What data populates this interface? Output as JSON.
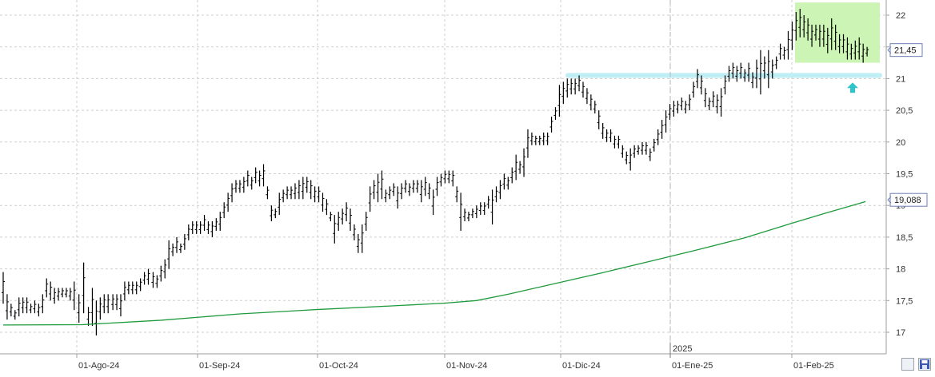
{
  "chart_data": {
    "type": "bar",
    "subtype": "ohlc",
    "x_ticks": [
      "01-Ago-24",
      "01-Sep-24",
      "01-Oct-24",
      "01-Nov-24",
      "01-Dic-24",
      "01-Ene-25",
      "01-Feb-25"
    ],
    "year_marker": "2025",
    "y_ticks": [
      "17",
      "17,5",
      "18",
      "18,5",
      "19",
      "19,5",
      "20",
      "20,5",
      "21",
      "21,5",
      "22"
    ],
    "ylim": [
      16.9,
      22.2
    ],
    "grid": true,
    "last_price_label": "21,45",
    "last_price": 21.45,
    "ma_label": "19,088",
    "ma_value": 19.088,
    "colors": {
      "bars": "#000000",
      "moving_average": "#1e9a3c",
      "support_line": "#bfeef5",
      "highlight_zone": "#ccf5b5",
      "arrow": "#2ec4c8",
      "grid": "#cfcfcf"
    },
    "support_level": 21.05,
    "arrow_direction": "up",
    "arrow_icon": "arrow-up-icon",
    "highlight_range": [
      21.25,
      22.2
    ],
    "bars": [
      [
        0,
        17.95,
        17.45
      ],
      [
        5,
        17.6,
        17.2
      ],
      [
        10,
        17.45,
        17.25
      ],
      [
        15,
        17.35,
        17.2
      ],
      [
        20,
        17.55,
        17.25
      ],
      [
        25,
        17.55,
        17.3
      ],
      [
        30,
        17.55,
        17.3
      ],
      [
        35,
        17.45,
        17.3
      ],
      [
        40,
        17.5,
        17.3
      ],
      [
        45,
        17.45,
        17.25
      ],
      [
        50,
        17.6,
        17.3
      ],
      [
        55,
        17.85,
        17.55
      ],
      [
        60,
        17.8,
        17.5
      ],
      [
        65,
        17.7,
        17.45
      ],
      [
        70,
        17.7,
        17.5
      ],
      [
        75,
        17.7,
        17.55
      ],
      [
        80,
        17.7,
        17.55
      ],
      [
        85,
        17.7,
        17.5
      ],
      [
        90,
        17.8,
        17.35
      ],
      [
        96,
        17.6,
        17.15
      ],
      [
        102,
        18.1,
        17.3
      ],
      [
        108,
        17.4,
        17.1
      ],
      [
        113,
        17.7,
        17.1
      ],
      [
        118,
        17.5,
        16.95
      ],
      [
        123,
        17.55,
        17.2
      ],
      [
        128,
        17.6,
        17.3
      ],
      [
        133,
        17.6,
        17.3
      ],
      [
        139,
        17.6,
        17.35
      ],
      [
        144,
        17.6,
        17.35
      ],
      [
        149,
        17.6,
        17.25
      ],
      [
        154,
        17.8,
        17.5
      ],
      [
        159,
        17.8,
        17.6
      ],
      [
        164,
        17.8,
        17.6
      ],
      [
        169,
        17.8,
        17.6
      ],
      [
        174,
        17.85,
        17.65
      ],
      [
        179,
        17.95,
        17.75
      ],
      [
        184,
        18,
        17.75
      ],
      [
        190,
        17.95,
        17.7
      ],
      [
        195,
        17.9,
        17.7
      ],
      [
        200,
        18.05,
        17.8
      ],
      [
        205,
        18.15,
        17.85
      ],
      [
        210,
        18.45,
        18
      ],
      [
        215,
        18.4,
        18.2
      ],
      [
        220,
        18.5,
        18.25
      ],
      [
        225,
        18.4,
        18.25
      ],
      [
        230,
        18.55,
        18.3
      ],
      [
        235,
        18.7,
        18.45
      ],
      [
        240,
        18.75,
        18.55
      ],
      [
        245,
        18.75,
        18.55
      ],
      [
        250,
        18.75,
        18.55
      ],
      [
        255,
        18.85,
        18.6
      ],
      [
        260,
        18.75,
        18.55
      ],
      [
        265,
        18.75,
        18.5
      ],
      [
        270,
        18.8,
        18.6
      ],
      [
        275,
        18.9,
        18.6
      ],
      [
        280,
        19.05,
        18.8
      ],
      [
        285,
        19.2,
        18.9
      ],
      [
        290,
        19.35,
        19.05
      ],
      [
        295,
        19.4,
        19.2
      ],
      [
        300,
        19.4,
        19.2
      ],
      [
        305,
        19.45,
        19.2
      ],
      [
        310,
        19.55,
        19.3
      ],
      [
        315,
        19.45,
        19.25
      ],
      [
        320,
        19.6,
        19.35
      ],
      [
        325,
        19.55,
        19.3
      ],
      [
        330,
        19.65,
        19.3
      ],
      [
        335,
        19.3,
        19.1
      ],
      [
        340,
        19,
        18.75
      ],
      [
        345,
        18.95,
        18.8
      ],
      [
        350,
        19.2,
        18.85
      ],
      [
        355,
        19.25,
        19.05
      ],
      [
        360,
        19.3,
        19.1
      ],
      [
        365,
        19.3,
        19.1
      ],
      [
        370,
        19.35,
        19.1
      ],
      [
        375,
        19.4,
        19.1
      ],
      [
        380,
        19.45,
        19.1
      ],
      [
        385,
        19.45,
        19.2
      ],
      [
        390,
        19.4,
        19.1
      ],
      [
        395,
        19.3,
        19.05
      ],
      [
        400,
        19.3,
        19.05
      ],
      [
        405,
        19.2,
        18.9
      ],
      [
        410,
        19.1,
        18.85
      ],
      [
        415,
        18.9,
        18.75
      ],
      [
        420,
        18.85,
        18.4
      ],
      [
        425,
        18.9,
        18.6
      ],
      [
        430,
        18.95,
        18.7
      ],
      [
        435,
        19.05,
        18.75
      ],
      [
        440,
        18.95,
        18.6
      ],
      [
        445,
        18.7,
        18.45
      ],
      [
        450,
        18.55,
        18.25
      ],
      [
        455,
        18.7,
        18.25
      ],
      [
        460,
        18.9,
        18.6
      ],
      [
        465,
        19.3,
        18.9
      ],
      [
        470,
        19.4,
        19.1
      ],
      [
        475,
        19.5,
        19.05
      ],
      [
        480,
        19.55,
        19.1
      ],
      [
        485,
        19.25,
        19.05
      ],
      [
        490,
        19.3,
        19.1
      ],
      [
        495,
        19.35,
        19.15
      ],
      [
        500,
        19.3,
        18.95
      ],
      [
        505,
        19.35,
        19.1
      ],
      [
        510,
        19.4,
        19.2
      ],
      [
        515,
        19.35,
        19.15
      ],
      [
        520,
        19.4,
        19.2
      ],
      [
        525,
        19.4,
        19.2
      ],
      [
        530,
        19.4,
        19.05
      ],
      [
        535,
        19.45,
        19.15
      ],
      [
        540,
        19.35,
        19.1
      ],
      [
        545,
        19.25,
        18.85
      ],
      [
        550,
        19.45,
        19.15
      ],
      [
        555,
        19.5,
        19.3
      ],
      [
        560,
        19.55,
        19.35
      ],
      [
        565,
        19.55,
        19.35
      ],
      [
        570,
        19.55,
        19.3
      ],
      [
        575,
        19.3,
        19.05
      ],
      [
        580,
        19.2,
        18.6
      ],
      [
        585,
        18.95,
        18.75
      ],
      [
        590,
        18.9,
        18.75
      ],
      [
        595,
        18.95,
        18.8
      ],
      [
        600,
        19,
        18.8
      ],
      [
        605,
        19.05,
        18.85
      ],
      [
        610,
        19.05,
        18.85
      ],
      [
        615,
        19.15,
        18.95
      ],
      [
        620,
        19.25,
        18.7
      ],
      [
        625,
        19.3,
        19.05
      ],
      [
        630,
        19.4,
        19.1
      ],
      [
        635,
        19.5,
        19.25
      ],
      [
        640,
        19.45,
        19.25
      ],
      [
        645,
        19.6,
        19.35
      ],
      [
        650,
        19.8,
        19.4
      ],
      [
        655,
        19.7,
        19.5
      ],
      [
        660,
        19.9,
        19.45
      ],
      [
        665,
        20.2,
        19.75
      ],
      [
        670,
        20.15,
        19.95
      ],
      [
        675,
        20.1,
        19.95
      ],
      [
        680,
        20.1,
        19.95
      ],
      [
        685,
        20.15,
        19.95
      ],
      [
        690,
        20.15,
        19.95
      ],
      [
        695,
        20.4,
        20.15
      ],
      [
        700,
        20.55,
        20.35
      ],
      [
        705,
        20.9,
        20.4
      ],
      [
        710,
        20.95,
        20.6
      ],
      [
        715,
        21,
        20.7
      ],
      [
        720,
        21,
        20.75
      ],
      [
        725,
        21,
        20.75
      ],
      [
        730,
        21.05,
        20.8
      ],
      [
        735,
        20.95,
        20.7
      ],
      [
        740,
        20.85,
        20.6
      ],
      [
        745,
        20.75,
        20.5
      ],
      [
        750,
        20.65,
        20.45
      ],
      [
        755,
        20.5,
        20.2
      ],
      [
        760,
        20.3,
        20.05
      ],
      [
        765,
        20.2,
        20
      ],
      [
        770,
        20.2,
        20
      ],
      [
        775,
        20.1,
        19.9
      ],
      [
        780,
        20.1,
        19.9
      ],
      [
        785,
        19.95,
        19.75
      ],
      [
        790,
        19.85,
        19.65
      ],
      [
        795,
        19.9,
        19.55
      ],
      [
        800,
        19.95,
        19.75
      ],
      [
        805,
        19.95,
        19.8
      ],
      [
        810,
        20,
        19.8
      ],
      [
        815,
        20,
        19.8
      ],
      [
        820,
        19.9,
        19.7
      ],
      [
        825,
        20.05,
        19.85
      ],
      [
        830,
        20.2,
        19.95
      ],
      [
        835,
        20.35,
        20.05
      ],
      [
        840,
        20.5,
        20.15
      ],
      [
        845,
        20.6,
        20.35
      ],
      [
        850,
        20.65,
        20.4
      ],
      [
        855,
        20.65,
        20.45
      ],
      [
        860,
        20.7,
        20.5
      ],
      [
        865,
        20.65,
        20.45
      ],
      [
        870,
        20.75,
        20.5
      ],
      [
        875,
        20.95,
        20.7
      ],
      [
        880,
        21.15,
        20.85
      ],
      [
        885,
        21.05,
        20.75
      ],
      [
        890,
        20.85,
        20.55
      ],
      [
        895,
        20.7,
        20.5
      ],
      [
        900,
        20.8,
        20.55
      ],
      [
        905,
        20.75,
        20.45
      ],
      [
        910,
        20.85,
        20.4
      ],
      [
        915,
        21.05,
        20.75
      ],
      [
        920,
        21.2,
        20.95
      ],
      [
        925,
        21.25,
        21
      ],
      [
        930,
        21.2,
        20.95
      ],
      [
        935,
        21.25,
        21
      ],
      [
        940,
        21.15,
        20.95
      ],
      [
        945,
        21.25,
        20.95
      ],
      [
        950,
        21.1,
        20.85
      ],
      [
        955,
        21.3,
        20.85
      ],
      [
        960,
        21.45,
        20.75
      ],
      [
        965,
        21.35,
        21
      ],
      [
        970,
        21.45,
        20.85
      ],
      [
        975,
        21.3,
        21
      ],
      [
        980,
        21.35,
        21.15
      ],
      [
        985,
        21.55,
        21.3
      ],
      [
        990,
        21.5,
        21.3
      ],
      [
        995,
        21.75,
        21.3
      ],
      [
        1000,
        21.9,
        21.45
      ],
      [
        1005,
        22.05,
        21.6
      ],
      [
        1010,
        22.1,
        21.65
      ],
      [
        1015,
        22,
        21.65
      ],
      [
        1020,
        21.95,
        21.6
      ],
      [
        1025,
        21.85,
        21.5
      ],
      [
        1030,
        21.85,
        21.6
      ],
      [
        1035,
        21.85,
        21.5
      ],
      [
        1040,
        21.85,
        21.5
      ],
      [
        1045,
        21.8,
        21.4
      ],
      [
        1050,
        21.95,
        21.45
      ],
      [
        1055,
        21.85,
        21.45
      ],
      [
        1060,
        21.7,
        21.4
      ],
      [
        1065,
        21.7,
        21.4
      ],
      [
        1070,
        21.65,
        21.3
      ],
      [
        1075,
        21.55,
        21.3
      ],
      [
        1080,
        21.6,
        21.3
      ],
      [
        1085,
        21.65,
        21.3
      ],
      [
        1090,
        21.55,
        21.25
      ],
      [
        1095,
        21.5,
        21.35
      ]
    ],
    "moving_average_series": [
      [
        0,
        17.115
      ],
      [
        100,
        17.12
      ],
      [
        200,
        17.19
      ],
      [
        300,
        17.29
      ],
      [
        400,
        17.36
      ],
      [
        500,
        17.42
      ],
      [
        560,
        17.46
      ],
      [
        600,
        17.5
      ],
      [
        640,
        17.6
      ],
      [
        700,
        17.77
      ],
      [
        760,
        17.94
      ],
      [
        820,
        18.12
      ],
      [
        880,
        18.3
      ],
      [
        940,
        18.49
      ],
      [
        1000,
        18.72
      ],
      [
        1040,
        18.87
      ],
      [
        1093,
        19.06
      ]
    ]
  }
}
